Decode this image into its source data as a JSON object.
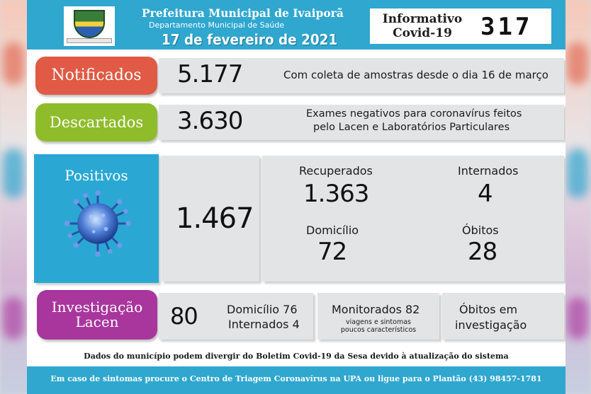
{
  "header": {
    "prefeitura": "Prefeitura Municipal de Ivaiporã",
    "departamento": "Departamento Municipal de Saúde",
    "date": "17 de fevereiro de 2021",
    "info_title": "Informativo Covid-19",
    "info_number": "317",
    "logo_icon": "municipal-coat-of-arms"
  },
  "notificados": {
    "label": "Notificados",
    "value": "5.177",
    "description": "Com coleta de amostras desde o dia 16 de março",
    "color": "#e05a45"
  },
  "descartados": {
    "label": "Descartados",
    "value": "3.630",
    "description_line1": "Exames negativos para coronavírus feitos",
    "description_line2": "pelo Lacen e Laboratórios Particulares",
    "color": "#8fbc2b"
  },
  "positivos": {
    "label": "Positivos",
    "value": "1.467",
    "icon": "virus-icon",
    "color": "#2aa8d3",
    "recuperados_label": "Recuperados",
    "recuperados_value": "1.363",
    "internados_label": "Internados",
    "internados_value": "4",
    "domicilio_label": "Domicílio",
    "domicilio_value": "72",
    "obitos_label": "Óbitos",
    "obitos_value": "28"
  },
  "investigacao": {
    "label_line1": "Investigação",
    "label_line2": "Lacen",
    "color": "#a8369d",
    "value": "80",
    "domicilio": "Domicílio 76",
    "internados": "Internados 4",
    "monitorados": "Monitorados 82",
    "monitorados_note_line1": "viagens e sintomas",
    "monitorados_note_line2": "poucos característicos",
    "obitos_line1": "Óbitos em",
    "obitos_line2": "investigação"
  },
  "disclaimer": "Dados do município podem divergir do Boletim Covid-19 da Sesa devido à atualização do sistema",
  "footer": "Em caso de sintomas procure o Centro de Triagem Coronavírus na UPA ou ligue para o Plantão (43) 98457-1781"
}
